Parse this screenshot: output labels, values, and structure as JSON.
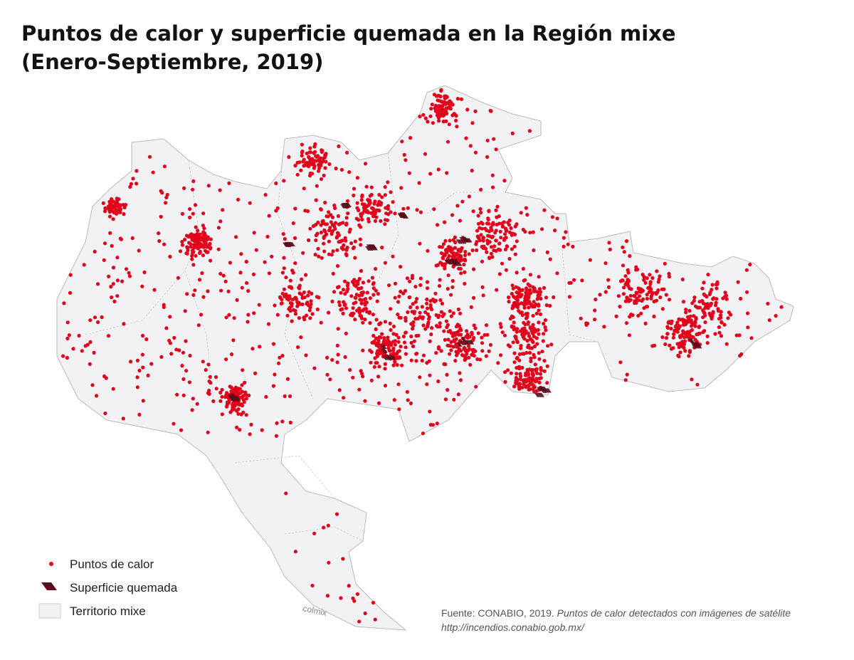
{
  "header": {
    "title": [
      "Puntos de calor y superficie quemada en la Región mixe",
      "(Enero-Septiembre, 2019)"
    ]
  },
  "legend": {
    "items": [
      "Puntos de calor",
      "Superficie quemada",
      "Territorio mixe"
    ]
  },
  "source": {
    "label": "Fuente: CONABIO, 2019.",
    "description": "Puntos de calor detectados con imágenes de satélite",
    "url": "http://incendios.conabio.gob.mx/"
  },
  "watermark": "colmix"
}
